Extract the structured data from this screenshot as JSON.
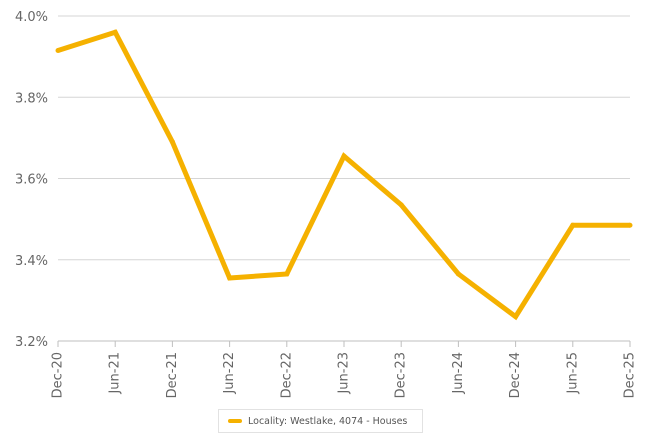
{
  "chart_data": {
    "type": "line",
    "categories": [
      "Dec-20",
      "Jun-21",
      "Dec-21",
      "Jun-22",
      "Dec-22",
      "Jun-23",
      "Dec-23",
      "Jun-24",
      "Dec-24",
      "Jun-25",
      "Dec-25"
    ],
    "series": [
      {
        "name": "Locality: Westlake, 4074 - Houses",
        "color": "#f5b100",
        "values": [
          3.915,
          3.96,
          3.69,
          3.355,
          3.365,
          3.655,
          3.535,
          3.365,
          3.26,
          3.485,
          3.485
        ]
      }
    ],
    "y_ticks": [
      "4.0%",
      "3.8%",
      "3.6%",
      "3.4%",
      "3.2%"
    ],
    "y_tick_values": [
      4.0,
      3.8,
      3.6,
      3.4,
      3.2
    ],
    "ylim": [
      3.2,
      4.0
    ],
    "grid": true,
    "legend_position": "bottom-center",
    "title": "",
    "xlabel": "",
    "ylabel": ""
  }
}
